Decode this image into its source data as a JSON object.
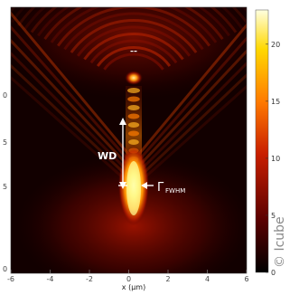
{
  "chart_data": {
    "type": "heatmap",
    "title": "",
    "xlabel": "x (µm)",
    "ylabel": "",
    "xlim": [
      -6,
      6
    ],
    "x_ticks": [
      "-6",
      "-4",
      "-2",
      "0",
      "2",
      "4",
      "6"
    ],
    "y_ticks": [
      "0",
      "5",
      "0",
      "5",
      "0"
    ],
    "colorbar": {
      "range": [
        0,
        23
      ],
      "ticks": [
        "0",
        "5",
        "10",
        "15",
        "20"
      ],
      "colormap": "hot"
    },
    "annotations": {
      "wd_label": "WD",
      "gamma_symbol": "Γ",
      "gamma_subscript": "FWHM"
    },
    "features": {
      "peak_intensity": 23,
      "focus_x": 0,
      "secondary_focus_x": 0,
      "fringe_pattern": "concentric arcs above the focal spot"
    }
  },
  "copyright_text": "© Icube",
  "colors": {
    "background": "#120000",
    "colormap_low": "#000000",
    "colormap_mid": "#c81e00",
    "colormap_high": "#ffff66",
    "annotation": "#ffffff"
  }
}
